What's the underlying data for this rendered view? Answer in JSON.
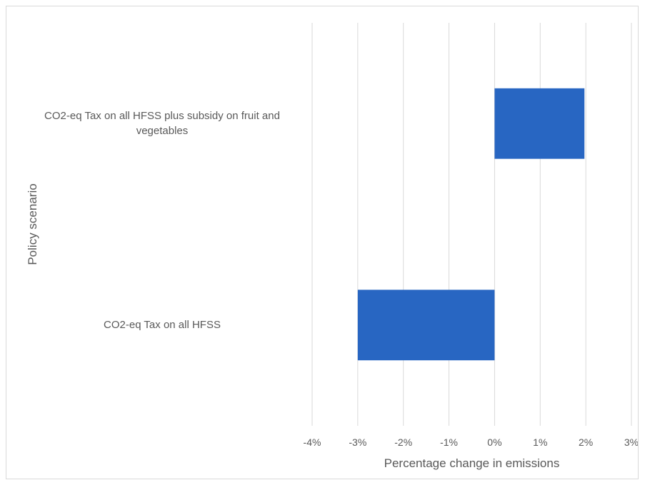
{
  "chart_data": {
    "type": "bar",
    "orientation": "horizontal",
    "title": "",
    "xlabel": "Percentage change in emissions",
    "ylabel": "Policy scenario",
    "xlim": [
      -0.04,
      0.03
    ],
    "x_ticks": [
      -0.04,
      -0.03,
      -0.02,
      -0.01,
      0,
      0.01,
      0.02,
      0.03
    ],
    "x_tick_labels": [
      "-4%",
      "-3%",
      "-2%",
      "-1%",
      "0%",
      "1%",
      "2%",
      "3%"
    ],
    "grid": "vertical",
    "categories": [
      "CO2-eq Tax on all HFSS plus subsidy on fruit and vegetables",
      "CO2-eq Tax on all HFSS"
    ],
    "values": [
      0.0197,
      -0.03
    ],
    "bar_color": "#2866c2",
    "grid_color": "#d9d9d9"
  }
}
